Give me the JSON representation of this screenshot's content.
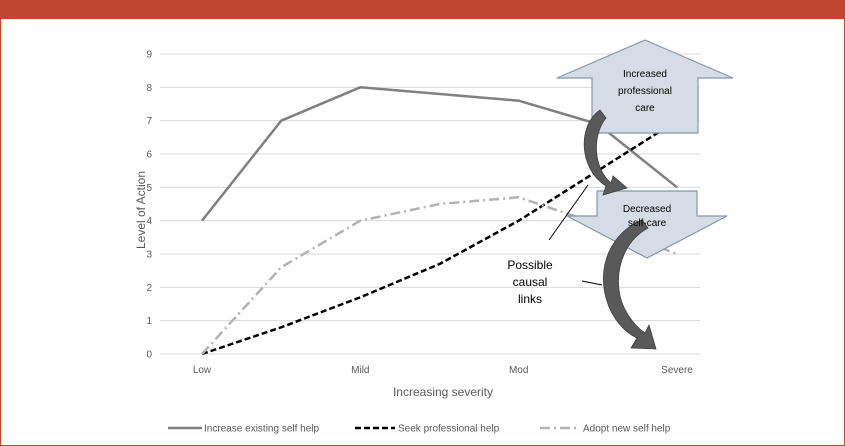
{
  "chart_data": {
    "type": "line",
    "title": "",
    "xlabel": "Increasing severity",
    "ylabel": "Level of Action",
    "ylim": [
      0,
      9
    ],
    "yticks": [
      "0",
      "1",
      "2",
      "3",
      "4",
      "5",
      "6",
      "7",
      "8",
      "9"
    ],
    "categories": [
      "Low",
      "Mild",
      "Mod",
      "Severe"
    ],
    "grid": true,
    "legend_position": "bottom",
    "series": [
      {
        "name": "Increase existing self help",
        "style": "solid",
        "color": "#808080",
        "x": [
          0,
          0.5,
          1,
          2,
          2.5,
          3
        ],
        "y": [
          4,
          7,
          8,
          7.6,
          6.9,
          5
        ]
      },
      {
        "name": "Seek professional help",
        "style": "dashed",
        "color": "#000000",
        "x": [
          0,
          0.5,
          1,
          1.5,
          2,
          2.5,
          3
        ],
        "y": [
          0,
          0.8,
          1.7,
          2.7,
          4,
          5.5,
          7
        ]
      },
      {
        "name": "Adopt new self help",
        "style": "dash-dot",
        "color": "#b3b3b3",
        "x": [
          0,
          0.5,
          1,
          1.5,
          2,
          2.5,
          3
        ],
        "y": [
          0,
          2.6,
          4,
          4.5,
          4.7,
          3.9,
          3
        ]
      }
    ],
    "annotations": {
      "up_arrow": "Increased professional care",
      "up_arrow_lines": [
        "Increased",
        "professional",
        "care"
      ],
      "down_arrow_lines": [
        "Decreased",
        "self-care"
      ],
      "links_lines": [
        "Possible",
        "causal",
        "links"
      ]
    },
    "colors": {
      "header_bar": "#c0462e",
      "arrow_fill": "#d6dce5",
      "arrow_stroke": "#8496b0",
      "curved_arrow": "#595959",
      "grid": "#d9d9d9"
    }
  }
}
